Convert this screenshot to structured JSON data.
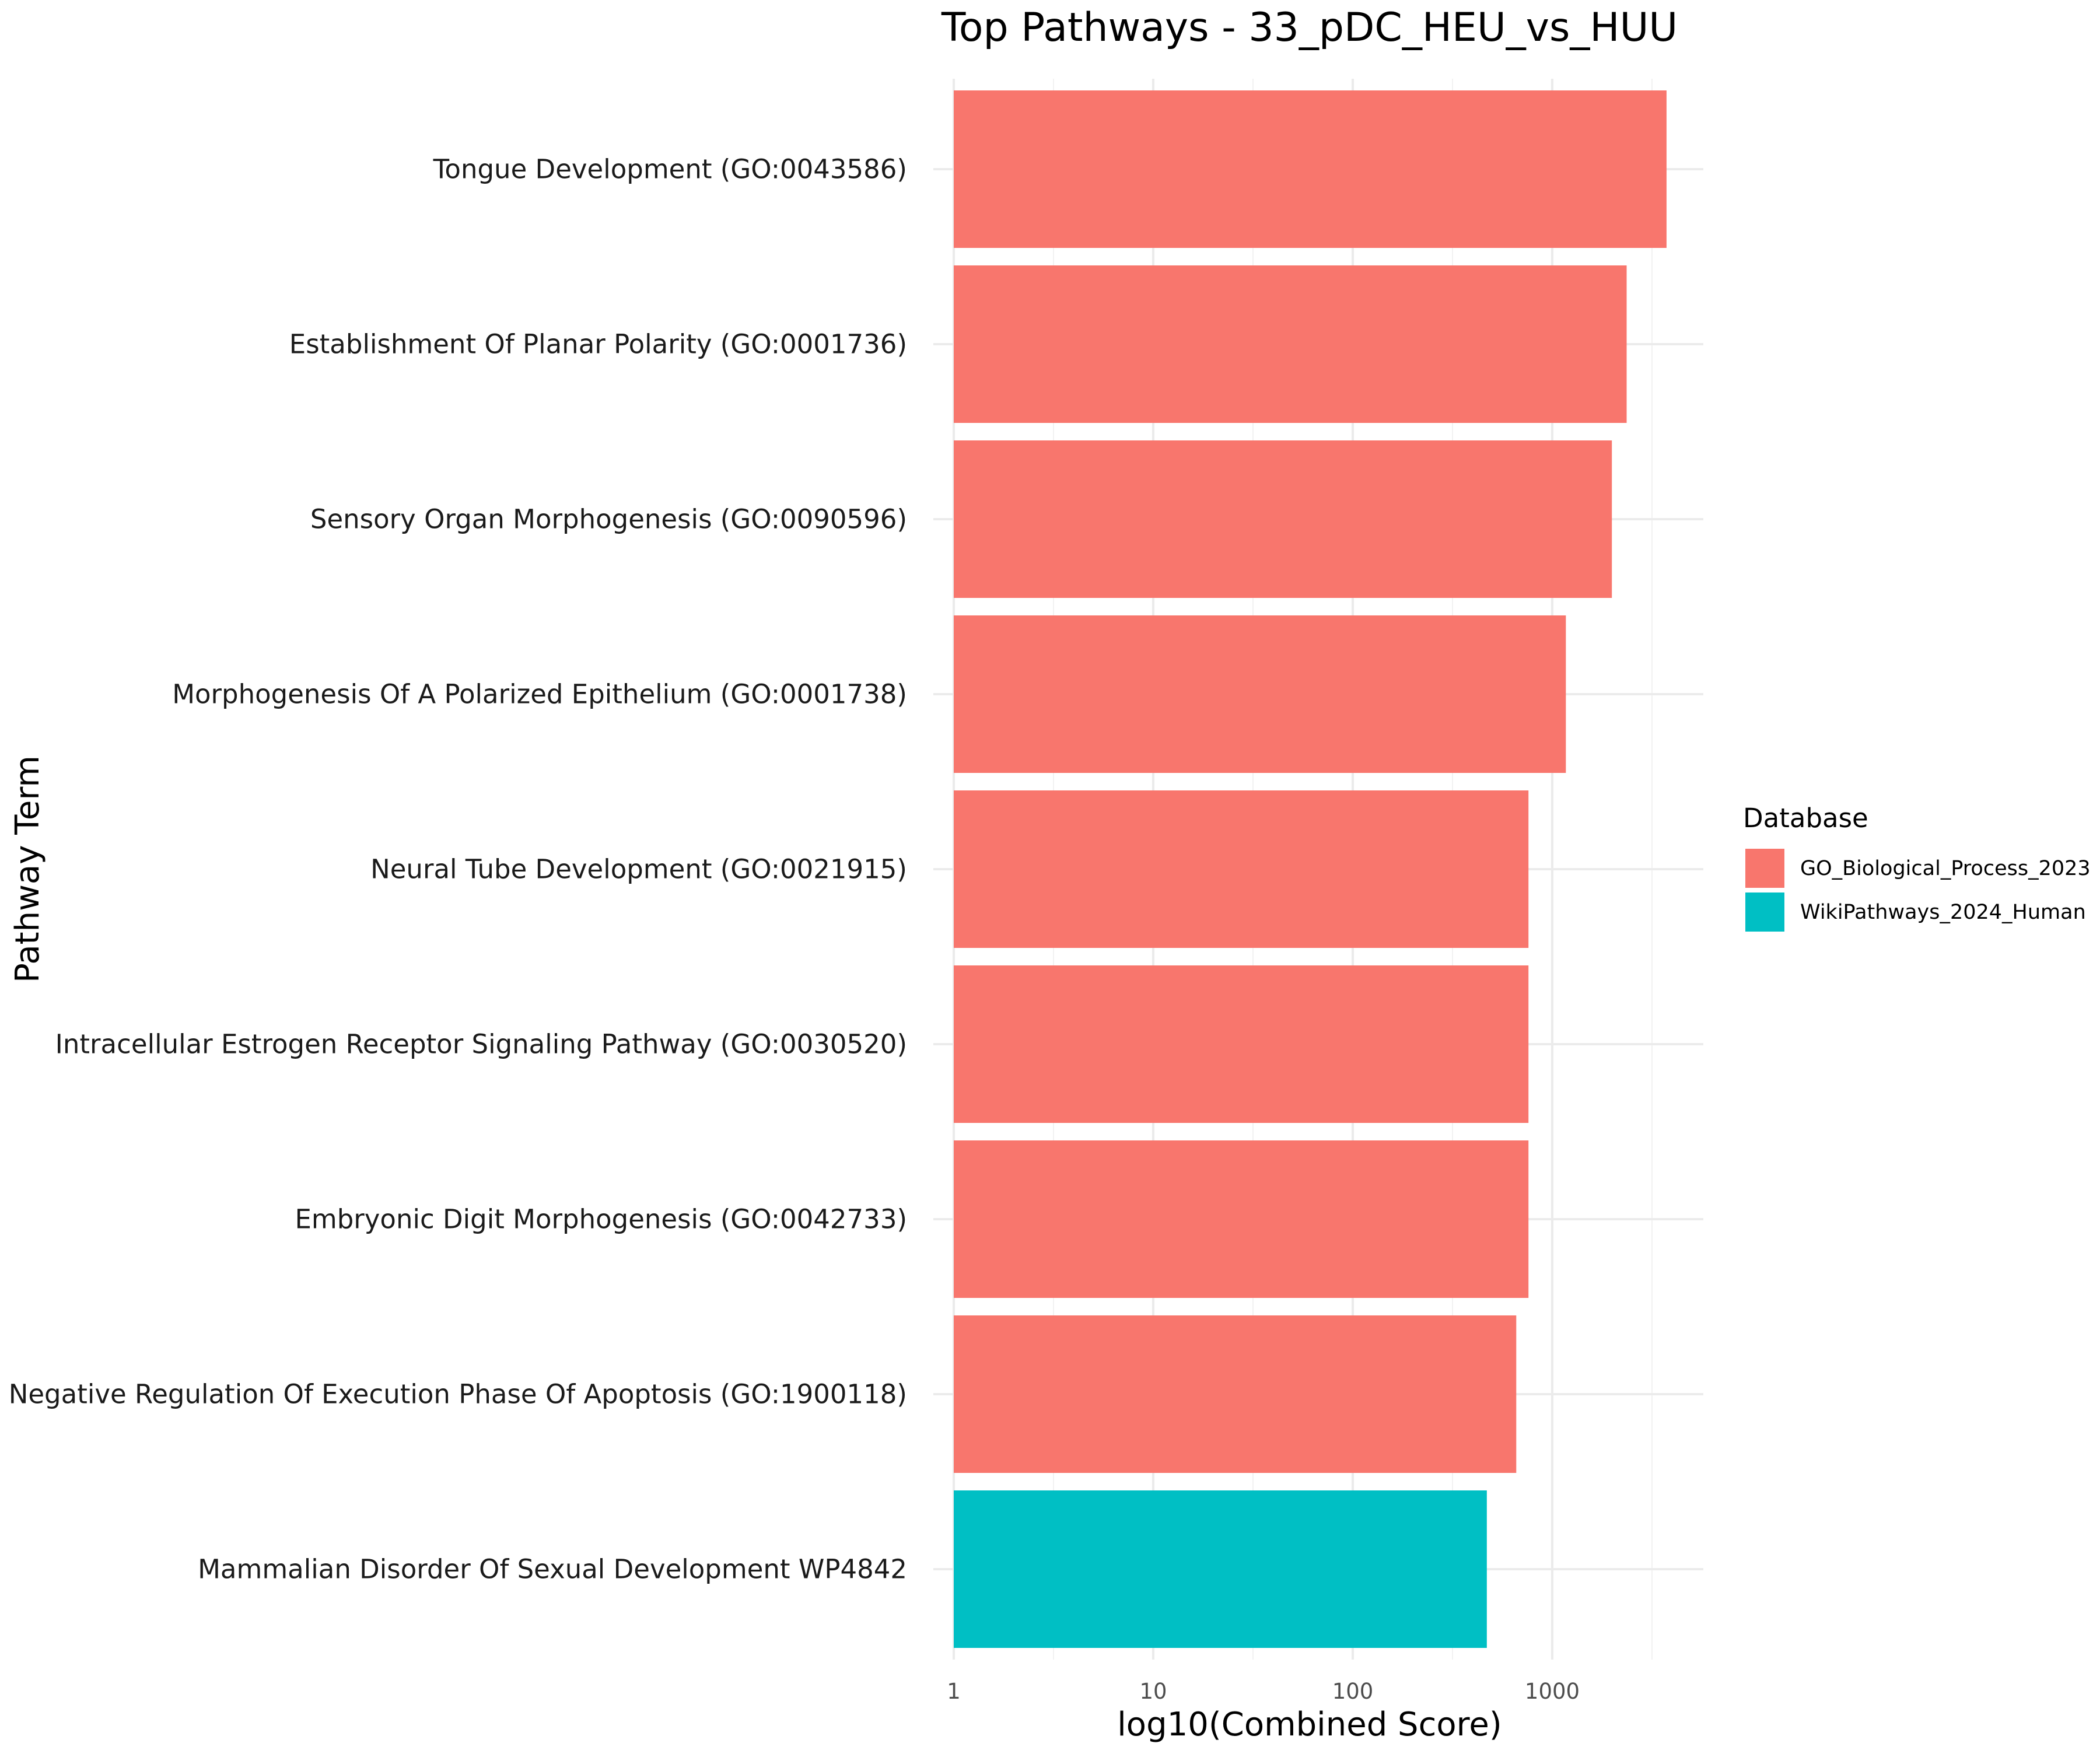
{
  "chart_data": {
    "type": "bar",
    "orientation": "horizontal",
    "title": "Top Pathways - 33_pDC_HEU_vs_HUU",
    "xlabel": "log10(Combined Score)",
    "ylabel": "Pathway Term",
    "x_scale": "log10",
    "xlim": [
      1,
      6000
    ],
    "x_ticks": [
      1,
      10,
      100,
      1000
    ],
    "x_tick_labels": [
      "1",
      "10",
      "100",
      "1000"
    ],
    "grid": true,
    "legend": {
      "title": "Database",
      "placement": "right",
      "entries": [
        {
          "label": "GO_Biological_Process_2023",
          "color": "#F8766D"
        },
        {
          "label": "WikiPathways_2024_Human",
          "color": "#00BFC4"
        }
      ]
    },
    "categories": [
      "Tongue Development (GO:0043586)",
      "Establishment Of Planar Polarity (GO:0001736)",
      "Sensory Organ Morphogenesis (GO:0090596)",
      "Morphogenesis Of A Polarized Epithelium (GO:0001738)",
      "Neural Tube Development (GO:0021915)",
      "Intracellular Estrogen Receptor Signaling Pathway (GO:0030520)",
      "Embryonic Digit Morphogenesis (GO:0042733)",
      "Negative Regulation Of Execution Phase Of Apoptosis (GO:1900118)",
      "Mammalian Disorder Of Sexual Development WP4842"
    ],
    "values": [
      3740,
      2360,
      1990,
      1170,
      760,
      760,
      760,
      660,
      470
    ],
    "database": [
      "GO_Biological_Process_2023",
      "GO_Biological_Process_2023",
      "GO_Biological_Process_2023",
      "GO_Biological_Process_2023",
      "GO_Biological_Process_2023",
      "GO_Biological_Process_2023",
      "GO_Biological_Process_2023",
      "GO_Biological_Process_2023",
      "WikiPathways_2024_Human"
    ]
  }
}
